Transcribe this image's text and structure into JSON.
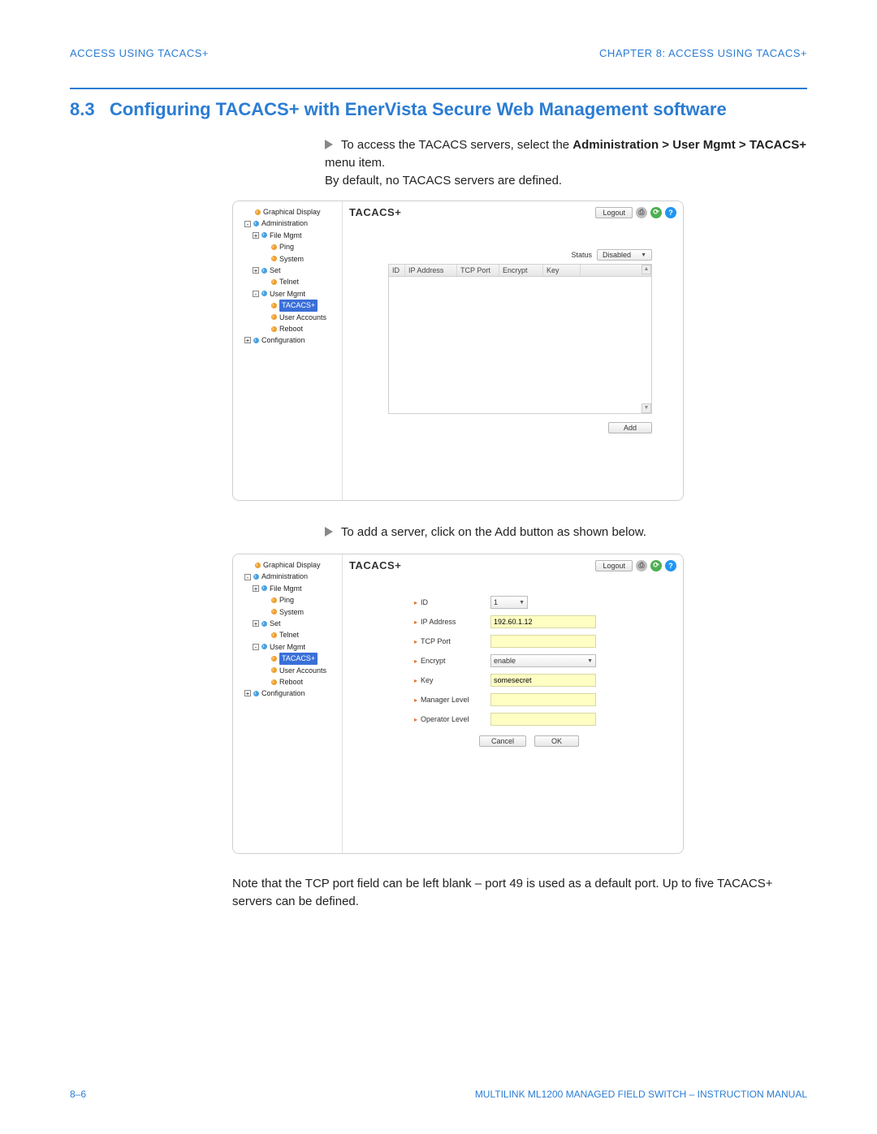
{
  "header": {
    "left": "ACCESS USING TACACS+",
    "right": "CHAPTER 8: ACCESS USING TACACS+"
  },
  "section": {
    "number": "8.3",
    "title": "Configuring TACACS+ with EnerVista Secure Web Management software"
  },
  "para1": {
    "lead": "To access the TACACS servers, select the ",
    "bold1": "Administration > User Mgmt > TACACS+",
    "tail1": " menu item.",
    "line2": "By default, no TACACS servers are defined."
  },
  "para2": "To add a server, click on the Add button as shown below.",
  "note": "Note that the TCP port field can be left blank – port 49 is used as a default port. Up to five TACACS+ servers can be defined.",
  "footer": {
    "left": "8–6",
    "right": "MULTILINK ML1200 MANAGED FIELD SWITCH – INSTRUCTION MANUAL"
  },
  "tree": {
    "items": [
      {
        "lvl": 0,
        "exp": "",
        "dot": "orange",
        "label": "Graphical Display"
      },
      {
        "lvl": 0,
        "exp": "-",
        "dot": "blue",
        "label": "Administration"
      },
      {
        "lvl": 1,
        "exp": "+",
        "dot": "blue",
        "label": "File Mgmt"
      },
      {
        "lvl": 2,
        "exp": "",
        "dot": "orange",
        "label": "Ping"
      },
      {
        "lvl": 2,
        "exp": "",
        "dot": "orange",
        "label": "System"
      },
      {
        "lvl": 1,
        "exp": "+",
        "dot": "blue",
        "label": "Set"
      },
      {
        "lvl": 2,
        "exp": "",
        "dot": "orange",
        "label": "Telnet"
      },
      {
        "lvl": 1,
        "exp": "-",
        "dot": "blue",
        "label": "User Mgmt"
      },
      {
        "lvl": 2,
        "exp": "",
        "dot": "orange",
        "label": "TACACS+",
        "sel": true
      },
      {
        "lvl": 2,
        "exp": "",
        "dot": "orange",
        "label": "User Accounts"
      },
      {
        "lvl": 2,
        "exp": "",
        "dot": "orange",
        "label": "Reboot"
      },
      {
        "lvl": 0,
        "exp": "+",
        "dot": "blue",
        "label": "Configuration"
      }
    ]
  },
  "panel": {
    "title": "TACACS+",
    "logout": "Logout",
    "icon_save": "⎙",
    "icon_refresh": "⟳",
    "icon_help": "?",
    "status_label": "Status",
    "status_value": "Disabled",
    "columns": {
      "id": "ID",
      "ip": "IP Address",
      "tcp": "TCP Port",
      "enc": "Encrypt",
      "key": "Key"
    },
    "add": "Add"
  },
  "form": {
    "fields": {
      "id": {
        "label": "ID",
        "value": "1"
      },
      "ip": {
        "label": "IP Address",
        "value": "192.60.1.12"
      },
      "tcp": {
        "label": "TCP Port",
        "value": ""
      },
      "enc": {
        "label": "Encrypt",
        "value": "enable"
      },
      "key": {
        "label": "Key",
        "value": "somesecret"
      },
      "mgr": {
        "label": "Manager Level",
        "value": ""
      },
      "opr": {
        "label": "Operator Level",
        "value": ""
      }
    },
    "cancel": "Cancel",
    "ok": "OK"
  }
}
